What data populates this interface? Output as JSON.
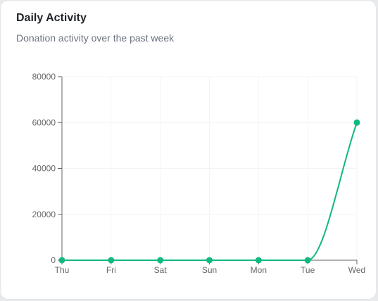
{
  "card": {
    "title": "Daily Activity",
    "subtitle": "Donation activity over the past week"
  },
  "colors": {
    "line": "#10b981",
    "axis": "#666666",
    "grid": "#f3f4f6"
  },
  "chart_data": {
    "type": "line",
    "title": "",
    "xlabel": "",
    "ylabel": "",
    "categories": [
      "Thu",
      "Fri",
      "Sat",
      "Sun",
      "Mon",
      "Tue",
      "Wed"
    ],
    "series": [
      {
        "values": [
          0,
          0,
          0,
          0,
          0,
          0,
          60000
        ]
      }
    ],
    "ylim": [
      0,
      80000
    ],
    "yticks": [
      0,
      20000,
      40000,
      60000,
      80000
    ],
    "grid": true,
    "legend": "none"
  }
}
